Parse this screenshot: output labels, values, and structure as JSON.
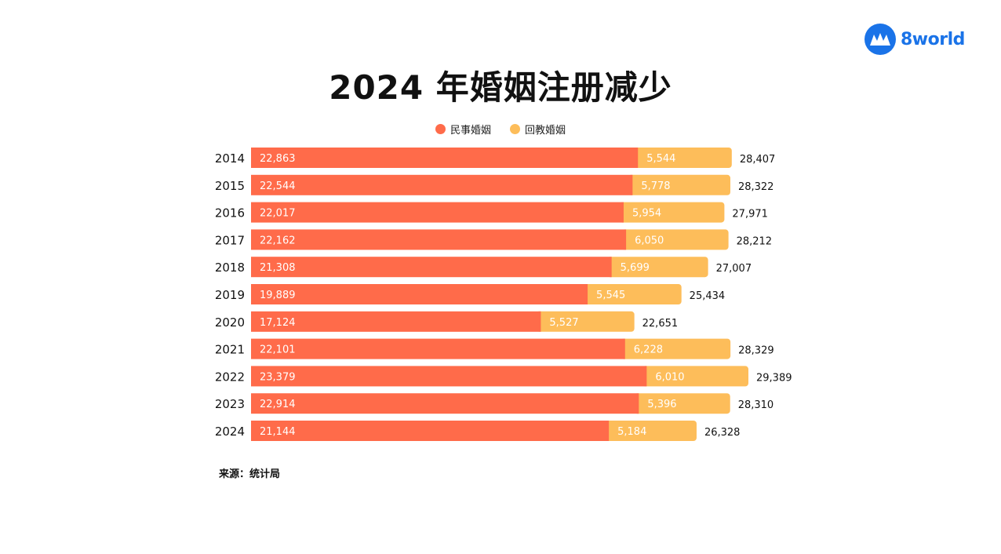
{
  "brand": {
    "name": "8world",
    "color": "#1a73e8"
  },
  "title": "2024 年婚姻注册减少",
  "source": "来源：统计局",
  "colors": {
    "civil": "#ff6b4a",
    "muslim": "#fdbd5a"
  },
  "chart_data": {
    "type": "bar",
    "orientation": "horizontal",
    "stacked": true,
    "categories": [
      "2014",
      "2015",
      "2016",
      "2017",
      "2018",
      "2019",
      "2020",
      "2021",
      "2022",
      "2023",
      "2024"
    ],
    "series": [
      {
        "name": "民事婚姻",
        "color": "#ff6b4a",
        "values": [
          22863,
          22544,
          22017,
          22162,
          21308,
          19889,
          17124,
          22101,
          23379,
          22914,
          21144
        ]
      },
      {
        "name": "回教婚姻",
        "color": "#fdbd5a",
        "values": [
          5544,
          5778,
          5954,
          6050,
          5699,
          5545,
          5527,
          6228,
          6010,
          5396,
          5184
        ]
      }
    ],
    "totals": [
      28407,
      28322,
      27971,
      28212,
      27007,
      25434,
      22651,
      28329,
      29389,
      28310,
      26328
    ],
    "legend_position": "top",
    "grid": false
  }
}
